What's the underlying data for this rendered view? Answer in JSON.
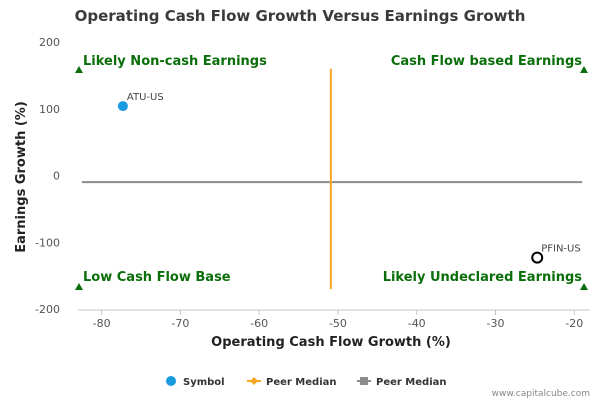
{
  "chart_data": {
    "type": "scatter",
    "title": "Operating Cash Flow Growth Versus Earnings Growth",
    "xlabel": "Operating Cash Flow Growth (%)",
    "ylabel": "Earnings Growth (%)",
    "xlim": [
      -83,
      -18
    ],
    "ylim": [
      -200,
      200
    ],
    "x_ticks": [
      -80,
      -70,
      -60,
      -50,
      -40,
      -30,
      -20
    ],
    "x_tick_labels": [
      "-80",
      "-70",
      "-60",
      "-50",
      "-40",
      "-30",
      "-20"
    ],
    "y_ticks": [
      200,
      100,
      0,
      -100,
      -200
    ],
    "y_tick_labels": [
      "200",
      "100",
      "0",
      "-100",
      "-200"
    ],
    "grid": false,
    "points": [
      {
        "label": "ATU-US",
        "x": -77.3,
        "y": 104,
        "style": "filled",
        "color": "#1a9be0"
      },
      {
        "label": "PFIN-US",
        "x": -24.7,
        "y": -123,
        "style": "hollow",
        "color": "#000000"
      }
    ],
    "median_lines": {
      "vertical_x": -50.9,
      "vertical_y_range": [
        -170,
        160
      ],
      "vertical_color": "#f5a623",
      "horizontal_y": -10,
      "horizontal_x_range": [
        -82.5,
        -19
      ],
      "horizontal_color": "#8c8c8c"
    },
    "quadrants": [
      {
        "text": "Likely Non-cash Earnings",
        "position": "top-left"
      },
      {
        "text": "Cash Flow based Earnings",
        "position": "top-right"
      },
      {
        "text": "Low Cash Flow Base",
        "position": "bottom-left"
      },
      {
        "text": "Likely Undeclared Earnings",
        "position": "bottom-right"
      }
    ],
    "marker_color": "#0a6e0a",
    "legend": {
      "position": "bottom-center",
      "items": [
        {
          "label": "Symbol",
          "type": "circle",
          "color": "#1a9be0"
        },
        {
          "label": "Peer Median",
          "type": "line-diamond",
          "color": "#f5a623"
        },
        {
          "label": "Peer Median",
          "type": "line-square",
          "color": "#8c8c8c"
        }
      ]
    },
    "credit": "www.capitalcube.com"
  }
}
